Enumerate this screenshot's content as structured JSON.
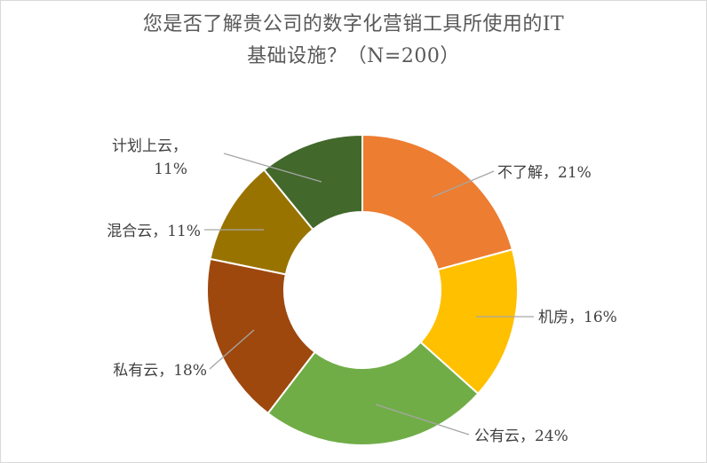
{
  "chart_data": {
    "type": "pie",
    "title_line1": "您是否了解贵公司的数字化营销工具所使用的IT",
    "title_line2": "基础设施？（N=200）",
    "categories": [
      "不了解",
      "机房",
      "公有云",
      "私有云",
      "混合云",
      "计划上云"
    ],
    "values": [
      21,
      16,
      24,
      18,
      11,
      11
    ],
    "value_labels": [
      "21%",
      "16%",
      "24%",
      "18%",
      "11%",
      "11%"
    ],
    "colors": [
      "#ED7D31",
      "#FFC000",
      "#70AD47",
      "#9E480E",
      "#997300",
      "#43682B"
    ],
    "legend": "none"
  }
}
